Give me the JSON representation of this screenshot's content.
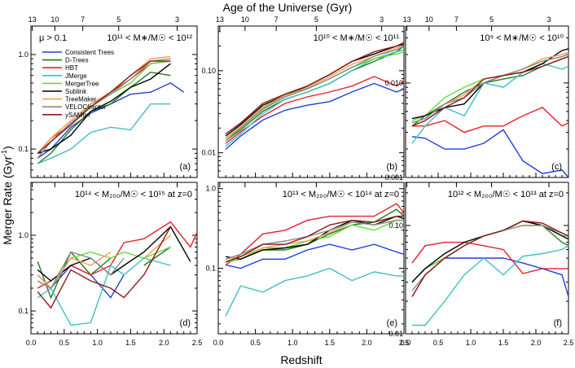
{
  "figure": {
    "top_label": "Age of the Universe (Gyr)",
    "bottom_label": "Redshift",
    "left_label": "Merger Rate (Gyr",
    "left_label_sup": "-1",
    "left_label_end": ")"
  },
  "legend": {
    "condition": "μ > 0.1",
    "items": [
      {
        "name": "Consistent Trees",
        "color": "#1f3fd8"
      },
      {
        "name": "D-Trees",
        "color": "#1f7a1f"
      },
      {
        "name": "HBT",
        "color": "#e8202a"
      },
      {
        "name": "JMerge",
        "color": "#3cc0c4"
      },
      {
        "name": "MergerTree",
        "color": "#62dc3c"
      },
      {
        "name": "Sublink",
        "color": "#000000"
      },
      {
        "name": "TreeMaker",
        "color": "#f0a050"
      },
      {
        "name": "VELOCIraptor",
        "color": "#8a8a8a"
      },
      {
        "name": "ySAMtm",
        "color": "#8c1a1a"
      }
    ]
  },
  "chart_data": [
    {
      "type": "line",
      "panel": "(a)",
      "title": "10¹¹ < M∗/M☉ < 10¹²",
      "x": [
        0.1,
        0.3,
        0.6,
        0.9,
        1.2,
        1.5,
        1.8,
        2.1,
        2.3
      ],
      "xlim": [
        0,
        2.5
      ],
      "ylim": [
        0.05,
        2.0
      ],
      "yscale": "log",
      "yticks": [
        "0.1",
        "1.0"
      ],
      "series": [
        {
          "name": "Consistent Trees",
          "values": [
            0.08,
            0.1,
            0.17,
            0.24,
            0.3,
            0.38,
            0.4,
            0.5,
            0.4
          ]
        },
        {
          "name": "D-Trees",
          "values": [
            0.07,
            0.09,
            0.16,
            0.25,
            0.3,
            0.45,
            0.65,
            0.6,
            null
          ]
        },
        {
          "name": "HBT",
          "values": [
            0.09,
            0.13,
            0.18,
            0.3,
            0.4,
            0.55,
            0.8,
            0.85,
            null
          ]
        },
        {
          "name": "JMerge",
          "values": [
            0.07,
            0.08,
            0.1,
            0.15,
            0.17,
            0.16,
            0.3,
            0.3,
            null
          ]
        },
        {
          "name": "MergerTree",
          "values": [
            0.08,
            0.12,
            0.18,
            0.3,
            0.38,
            0.5,
            0.8,
            0.85,
            null
          ]
        },
        {
          "name": "Sublink",
          "values": [
            0.09,
            0.1,
            0.14,
            0.25,
            0.32,
            0.45,
            0.55,
            0.8,
            null
          ]
        },
        {
          "name": "TreeMaker",
          "values": [
            0.09,
            0.13,
            0.2,
            0.3,
            0.4,
            0.6,
            0.9,
            0.95,
            null
          ]
        },
        {
          "name": "VELOCIraptor",
          "values": [
            0.08,
            0.12,
            0.19,
            0.28,
            0.38,
            0.55,
            0.85,
            0.9,
            null
          ]
        },
        {
          "name": "ySAMtm",
          "values": [
            0.09,
            0.12,
            0.18,
            0.28,
            0.4,
            0.6,
            0.85,
            0.85,
            null
          ]
        }
      ]
    },
    {
      "type": "line",
      "panel": "(b)",
      "title": "10¹⁰ < M∗/M☉ < 10¹¹",
      "x": [
        0.1,
        0.3,
        0.6,
        0.9,
        1.2,
        1.5,
        1.8,
        2.1,
        2.4,
        2.5
      ],
      "xlim": [
        0,
        2.5
      ],
      "ylim": [
        0.005,
        0.35
      ],
      "yscale": "log",
      "yticks": [
        "0.01",
        "0.10"
      ],
      "series": [
        {
          "name": "Consistent Trees",
          "values": [
            0.011,
            0.016,
            0.025,
            0.033,
            0.038,
            0.042,
            0.055,
            0.07,
            0.055,
            0.06
          ]
        },
        {
          "name": "D-Trees",
          "values": [
            0.014,
            0.019,
            0.032,
            0.045,
            0.055,
            0.07,
            0.1,
            0.13,
            0.17,
            0.2
          ]
        },
        {
          "name": "HBT",
          "values": [
            0.013,
            0.018,
            0.028,
            0.04,
            0.048,
            0.055,
            0.065,
            0.085,
            0.065,
            0.075
          ]
        },
        {
          "name": "JMerge",
          "values": [
            0.012,
            0.017,
            0.03,
            0.045,
            0.055,
            0.07,
            0.1,
            0.14,
            0.17,
            0.18
          ]
        },
        {
          "name": "MergerTree",
          "values": [
            0.015,
            0.02,
            0.035,
            0.05,
            0.06,
            0.08,
            0.11,
            0.14,
            0.16,
            0.17
          ]
        },
        {
          "name": "Sublink",
          "values": [
            0.016,
            0.022,
            0.038,
            0.05,
            0.065,
            0.09,
            0.13,
            0.16,
            0.2,
            0.21
          ]
        },
        {
          "name": "TreeMaker",
          "values": [
            0.015,
            0.021,
            0.036,
            0.05,
            0.062,
            0.085,
            0.12,
            0.15,
            0.19,
            0.2
          ]
        },
        {
          "name": "VELOCIraptor",
          "values": [
            0.014,
            0.02,
            0.034,
            0.048,
            0.06,
            0.08,
            0.11,
            0.15,
            0.18,
            0.2
          ]
        },
        {
          "name": "ySAMtm",
          "values": [
            0.017,
            0.023,
            0.04,
            0.052,
            0.065,
            0.09,
            0.13,
            0.17,
            0.2,
            0.22
          ]
        }
      ]
    },
    {
      "type": "line",
      "panel": "(c)",
      "title": "10⁹ < M∗/M☉ < 10¹⁰",
      "x": [
        0.1,
        0.3,
        0.6,
        0.9,
        1.2,
        1.5,
        1.8,
        2.1,
        2.4,
        2.5
      ],
      "xlim": [
        0,
        2.5
      ],
      "ylim": [
        0.001,
        0.04
      ],
      "yscale": "log",
      "yticks": [
        "0.001",
        "0.010"
      ],
      "series": [
        {
          "name": "Consistent Trees",
          "values": [
            0.0027,
            0.0026,
            0.002,
            0.002,
            0.0023,
            0.0032,
            0.0015,
            0.0011,
            0.0012,
            0.001
          ]
        },
        {
          "name": "D-Trees",
          "values": [
            0.0035,
            0.0045,
            0.006,
            0.008,
            0.01,
            0.011,
            0.012,
            0.015,
            0.018,
            0.019
          ]
        },
        {
          "name": "HBT",
          "values": [
            0.0035,
            0.0035,
            0.004,
            0.003,
            0.0035,
            0.0035,
            0.0045,
            0.0055,
            0.0035,
            0.0038
          ]
        },
        {
          "name": "JMerge",
          "values": [
            0.0023,
            0.0035,
            0.0055,
            0.0045,
            0.01,
            0.009,
            0.013,
            0.016,
            0.014,
            0.015
          ]
        },
        {
          "name": "MergerTree",
          "values": [
            0.004,
            0.0045,
            0.007,
            0.009,
            0.011,
            0.012,
            0.014,
            0.017,
            0.019,
            0.02
          ]
        },
        {
          "name": "Sublink",
          "values": [
            0.0042,
            0.0045,
            0.0055,
            0.006,
            0.01,
            0.012,
            0.013,
            0.016,
            0.022,
            0.023
          ]
        },
        {
          "name": "TreeMaker",
          "values": [
            0.0038,
            0.0042,
            0.006,
            0.0075,
            0.011,
            0.012,
            0.014,
            0.018,
            0.02,
            0.021
          ]
        },
        {
          "name": "VELOCIraptor",
          "values": [
            0.0038,
            0.0042,
            0.006,
            0.007,
            0.01,
            0.012,
            0.014,
            0.017,
            0.019,
            0.02
          ]
        },
        {
          "name": "ySAMtm",
          "values": [
            0.0035,
            0.004,
            0.0055,
            0.007,
            0.011,
            0.012,
            0.013,
            0.015,
            0.018,
            0.019
          ]
        }
      ]
    },
    {
      "type": "line",
      "panel": "(d)",
      "title": "10¹⁴ < M₂₀₀/M☉ < 10¹⁵ at z=0",
      "x": [
        0.1,
        0.3,
        0.6,
        0.9,
        1.2,
        1.4,
        1.7,
        2.1,
        2.4,
        2.5
      ],
      "xlim": [
        0,
        2.5
      ],
      "ylim": [
        0.05,
        5.0
      ],
      "yscale": "log",
      "yticks": [
        "0.1",
        "1.0"
      ],
      "series": [
        {
          "name": "Consistent Trees",
          "values": [
            0.3,
            0.2,
            0.4,
            0.3,
            0.15,
            0.3,
            null,
            null,
            null,
            null
          ]
        },
        {
          "name": "D-Trees",
          "values": [
            0.45,
            0.15,
            0.6,
            0.3,
            0.5,
            null,
            0.4,
            0.7,
            null,
            null
          ]
        },
        {
          "name": "HBT",
          "values": [
            0.2,
            0.25,
            0.4,
            0.3,
            0.4,
            0.8,
            0.9,
            1.5,
            0.7,
            1.1
          ]
        },
        {
          "name": "JMerge",
          "values": [
            0.15,
            0.2,
            0.065,
            0.07,
            0.4,
            0.3,
            0.5,
            0.4,
            null,
            null
          ]
        },
        {
          "name": "MergerTree",
          "values": [
            0.25,
            0.2,
            0.5,
            0.6,
            0.5,
            0.6,
            0.5,
            0.7,
            null,
            null
          ]
        },
        {
          "name": "Sublink",
          "values": [
            0.35,
            0.25,
            0.4,
            0.5,
            0.3,
            0.4,
            0.6,
            1.3,
            0.45,
            null
          ]
        },
        {
          "name": "TreeMaker",
          "values": [
            0.3,
            0.2,
            0.5,
            0.4,
            0.6,
            null,
            0.5,
            1.0,
            null,
            null
          ]
        },
        {
          "name": "VELOCIraptor",
          "values": [
            0.25,
            0.2,
            0.6,
            0.5,
            0.3,
            0.5,
            null,
            null,
            null,
            null
          ]
        },
        {
          "name": "ySAMtm",
          "values": [
            0.18,
            0.11,
            0.35,
            0.25,
            0.2,
            0.15,
            0.3,
            1.3,
            null,
            null
          ]
        }
      ]
    },
    {
      "type": "line",
      "panel": "(e)",
      "title": "10¹³ < M₂₀₀/M☉ < 10¹⁴ at z=0",
      "x": [
        0.1,
        0.3,
        0.6,
        0.9,
        1.2,
        1.5,
        1.8,
        2.1,
        2.4,
        2.5
      ],
      "xlim": [
        0,
        2.5
      ],
      "ylim": [
        0.015,
        1.2
      ],
      "yscale": "log",
      "yticks": [
        "0.1",
        "1.0"
      ],
      "series": [
        {
          "name": "Consistent Trees",
          "values": [
            0.11,
            0.1,
            0.13,
            0.13,
            0.17,
            0.2,
            0.17,
            0.2,
            0.16,
            0.15
          ]
        },
        {
          "name": "D-Trees",
          "values": [
            0.12,
            0.13,
            0.17,
            0.17,
            0.2,
            0.27,
            0.35,
            0.38,
            0.55,
            0.45
          ]
        },
        {
          "name": "HBT",
          "values": [
            0.11,
            0.15,
            0.27,
            0.3,
            0.4,
            0.45,
            0.45,
            0.45,
            0.65,
            0.5
          ]
        },
        {
          "name": "JMerge",
          "values": [
            0.025,
            0.06,
            0.05,
            0.07,
            0.08,
            0.1,
            0.07,
            0.09,
            0.08,
            0.08
          ]
        },
        {
          "name": "MergerTree",
          "values": [
            0.12,
            0.13,
            0.18,
            0.18,
            0.22,
            0.25,
            0.35,
            0.3,
            0.4,
            0.4
          ]
        },
        {
          "name": "Sublink",
          "values": [
            0.14,
            0.13,
            0.17,
            0.18,
            0.2,
            0.3,
            0.4,
            0.35,
            0.45,
            0.42
          ]
        },
        {
          "name": "TreeMaker",
          "values": [
            0.13,
            0.14,
            0.18,
            0.2,
            0.22,
            0.28,
            0.38,
            0.35,
            0.4,
            0.4
          ]
        },
        {
          "name": "VELOCIraptor",
          "values": [
            0.13,
            0.15,
            0.2,
            0.22,
            0.25,
            0.3,
            0.38,
            0.35,
            0.4,
            0.4
          ]
        },
        {
          "name": "ySAMtm",
          "values": [
            0.12,
            0.14,
            0.2,
            0.2,
            0.25,
            0.35,
            0.4,
            0.38,
            0.45,
            0.45
          ]
        }
      ]
    },
    {
      "type": "line",
      "panel": "(f)",
      "title": "10¹² < M₂₀₀/M☉ < 10¹³ at z=0",
      "x": [
        0.1,
        0.3,
        0.6,
        0.9,
        1.2,
        1.5,
        1.8,
        2.1,
        2.4,
        2.5
      ],
      "xlim": [
        0,
        2.5
      ],
      "ylim": [
        0.01,
        0.25
      ],
      "yscale": "log",
      "yticks": [
        "0.01",
        "0.10"
      ],
      "series": [
        {
          "name": "Consistent Trees",
          "values": [
            0.03,
            0.04,
            0.05,
            0.05,
            0.05,
            0.05,
            0.045,
            0.04,
            0.035,
            0.022
          ]
        },
        {
          "name": "D-Trees",
          "values": [
            0.03,
            0.04,
            0.05,
            0.065,
            0.08,
            0.09,
            0.11,
            0.1,
            0.07,
            0.065
          ]
        },
        {
          "name": "HBT",
          "values": [
            0.045,
            0.065,
            0.07,
            0.07,
            0.065,
            0.06,
            0.036,
            0.04,
            0.04,
            0.04
          ]
        },
        {
          "name": "JMerge",
          "values": [
            0.012,
            0.012,
            0.02,
            0.035,
            0.05,
            0.035,
            0.052,
            0.055,
            0.06,
            0.065
          ]
        },
        {
          "name": "MergerTree",
          "values": [
            0.03,
            0.04,
            0.05,
            0.065,
            0.08,
            0.09,
            0.1,
            0.1,
            0.08,
            0.08
          ]
        },
        {
          "name": "Sublink",
          "values": [
            0.03,
            0.04,
            0.055,
            0.07,
            0.08,
            0.09,
            0.11,
            0.1,
            0.08,
            0.075
          ]
        },
        {
          "name": "TreeMaker",
          "values": [
            0.022,
            0.035,
            0.05,
            0.065,
            0.08,
            0.09,
            0.1,
            0.1,
            0.085,
            0.08
          ]
        },
        {
          "name": "VELOCIraptor",
          "values": [
            0.025,
            0.035,
            0.05,
            0.065,
            0.08,
            0.09,
            0.1,
            0.1,
            0.085,
            0.08
          ]
        },
        {
          "name": "ySAMtm",
          "values": [
            0.022,
            0.035,
            0.05,
            0.065,
            0.08,
            0.09,
            0.11,
            0.105,
            0.085,
            0.08
          ]
        }
      ]
    }
  ],
  "top_ticks": [
    {
      "label": "13",
      "z": 0.02
    },
    {
      "label": "10",
      "z": 0.36
    },
    {
      "label": "7",
      "z": 0.78
    },
    {
      "label": "5",
      "z": 1.32
    },
    {
      "label": "3",
      "z": 2.2
    }
  ],
  "x_ticks": [
    "0.0",
    "0.5",
    "1.0",
    "1.5",
    "2.0",
    "2.5"
  ]
}
